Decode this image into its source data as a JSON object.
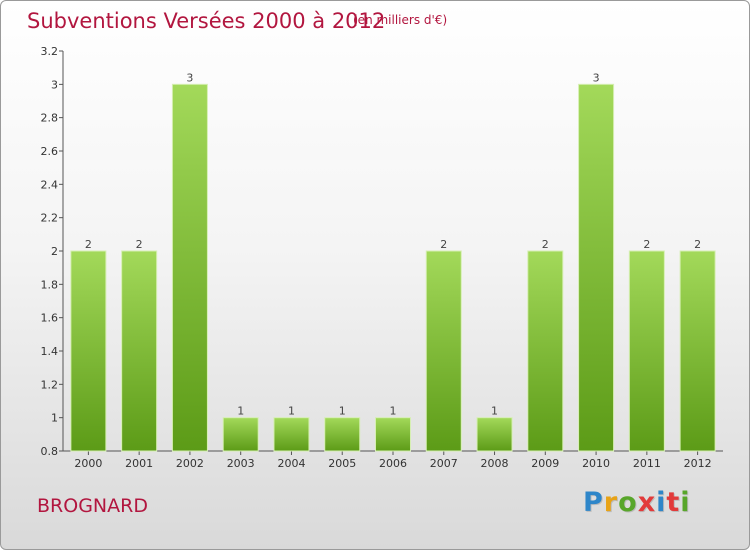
{
  "header": {
    "title": "Subventions Versées 2000 à 2012",
    "subtitle": "(en milliers d'€)"
  },
  "footer": {
    "place": "BROGNARD",
    "brand": "Proxiti",
    "brand_colors": [
      "#2e86c9",
      "#e8a317",
      "#58a62a",
      "#e23a3a",
      "#2e86c9",
      "#e23a3a",
      "#58a62a"
    ]
  },
  "colors": {
    "bar_top": "#a3d95a",
    "bar_bottom": "#5c9b17",
    "title": "#b2163f",
    "axis": "#555555"
  },
  "chart_data": {
    "type": "bar",
    "categories": [
      "2000",
      "2001",
      "2002",
      "2003",
      "2004",
      "2005",
      "2006",
      "2007",
      "2008",
      "2009",
      "2010",
      "2011",
      "2012"
    ],
    "values": [
      2,
      2,
      3,
      1,
      1,
      1,
      1,
      2,
      1,
      2,
      3,
      2,
      2
    ],
    "title": "Subventions Versées 2000 à 2012",
    "subtitle": "(en milliers d'€)",
    "ylim": [
      0.8,
      3.2
    ],
    "yticks": [
      "0.8",
      "1",
      "1.2",
      "1.4",
      "1.6",
      "1.8",
      "2",
      "2.2",
      "2.4",
      "2.6",
      "2.8",
      "3",
      "3.2"
    ],
    "grid": false,
    "legend": "none"
  }
}
